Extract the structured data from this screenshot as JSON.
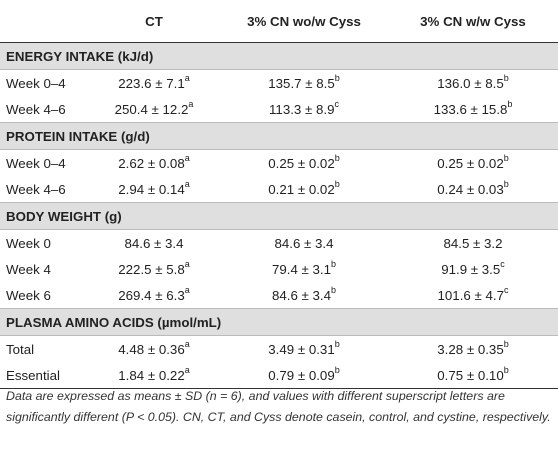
{
  "headers": [
    "",
    "CT",
    "3% CN wo/w Cyss",
    "3% CN w/w Cyss"
  ],
  "sections": [
    {
      "title": "ENERGY INTAKE (kJ/d)",
      "rows": [
        {
          "label": "Week 0–4",
          "cells": [
            [
              "223.6 ± 7.1",
              "a"
            ],
            [
              "135.7 ± 8.5",
              "b"
            ],
            [
              "136.0 ± 8.5",
              "b"
            ]
          ]
        },
        {
          "label": "Week 4–6",
          "cells": [
            [
              "250.4 ± 12.2",
              "a"
            ],
            [
              "113.3 ± 8.9",
              "c"
            ],
            [
              "133.6 ± 15.8",
              "b"
            ]
          ]
        }
      ]
    },
    {
      "title": "PROTEIN INTAKE (g/d)",
      "rows": [
        {
          "label": "Week 0–4",
          "cells": [
            [
              "2.62 ± 0.08",
              "a"
            ],
            [
              "0.25 ± 0.02",
              "b"
            ],
            [
              "0.25 ± 0.02",
              "b"
            ]
          ]
        },
        {
          "label": "Week 4–6",
          "cells": [
            [
              "2.94 ± 0.14",
              "a"
            ],
            [
              "0.21 ± 0.02",
              "b"
            ],
            [
              "0.24 ± 0.03",
              "b"
            ]
          ]
        }
      ]
    },
    {
      "title": "BODY WEIGHT (g)",
      "rows": [
        {
          "label": "Week 0",
          "cells": [
            [
              "84.6 ± 3.4",
              ""
            ],
            [
              "84.6 ± 3.4",
              ""
            ],
            [
              "84.5 ± 3.2",
              ""
            ]
          ]
        },
        {
          "label": "Week 4",
          "cells": [
            [
              "222.5 ± 5.8",
              "a"
            ],
            [
              "79.4 ± 3.1",
              "b"
            ],
            [
              "91.9 ± 3.5",
              "c"
            ]
          ]
        },
        {
          "label": "Week 6",
          "cells": [
            [
              "269.4 ± 6.3",
              "a"
            ],
            [
              "84.6 ± 3.4",
              "b"
            ],
            [
              "101.6 ± 4.7",
              "c"
            ]
          ]
        }
      ]
    },
    {
      "title": "PLASMA AMINO ACIDS (µmol/mL)",
      "rows": [
        {
          "label": "Total",
          "cells": [
            [
              "4.48 ± 0.36",
              "a"
            ],
            [
              "3.49 ± 0.31",
              "b"
            ],
            [
              "3.28 ± 0.35",
              "b"
            ]
          ]
        },
        {
          "label": "Essential",
          "cells": [
            [
              "1.84 ± 0.22",
              "a"
            ],
            [
              "0.79 ± 0.09",
              "b"
            ],
            [
              "0.75 ± 0.10",
              "b"
            ]
          ]
        }
      ]
    }
  ],
  "footnote": "Data are expressed as means ± SD (n = 6), and values with different superscript letters are significantly different (P < 0.05). CN, CT, and Cyss denote casein, control, and cystine, respectively."
}
